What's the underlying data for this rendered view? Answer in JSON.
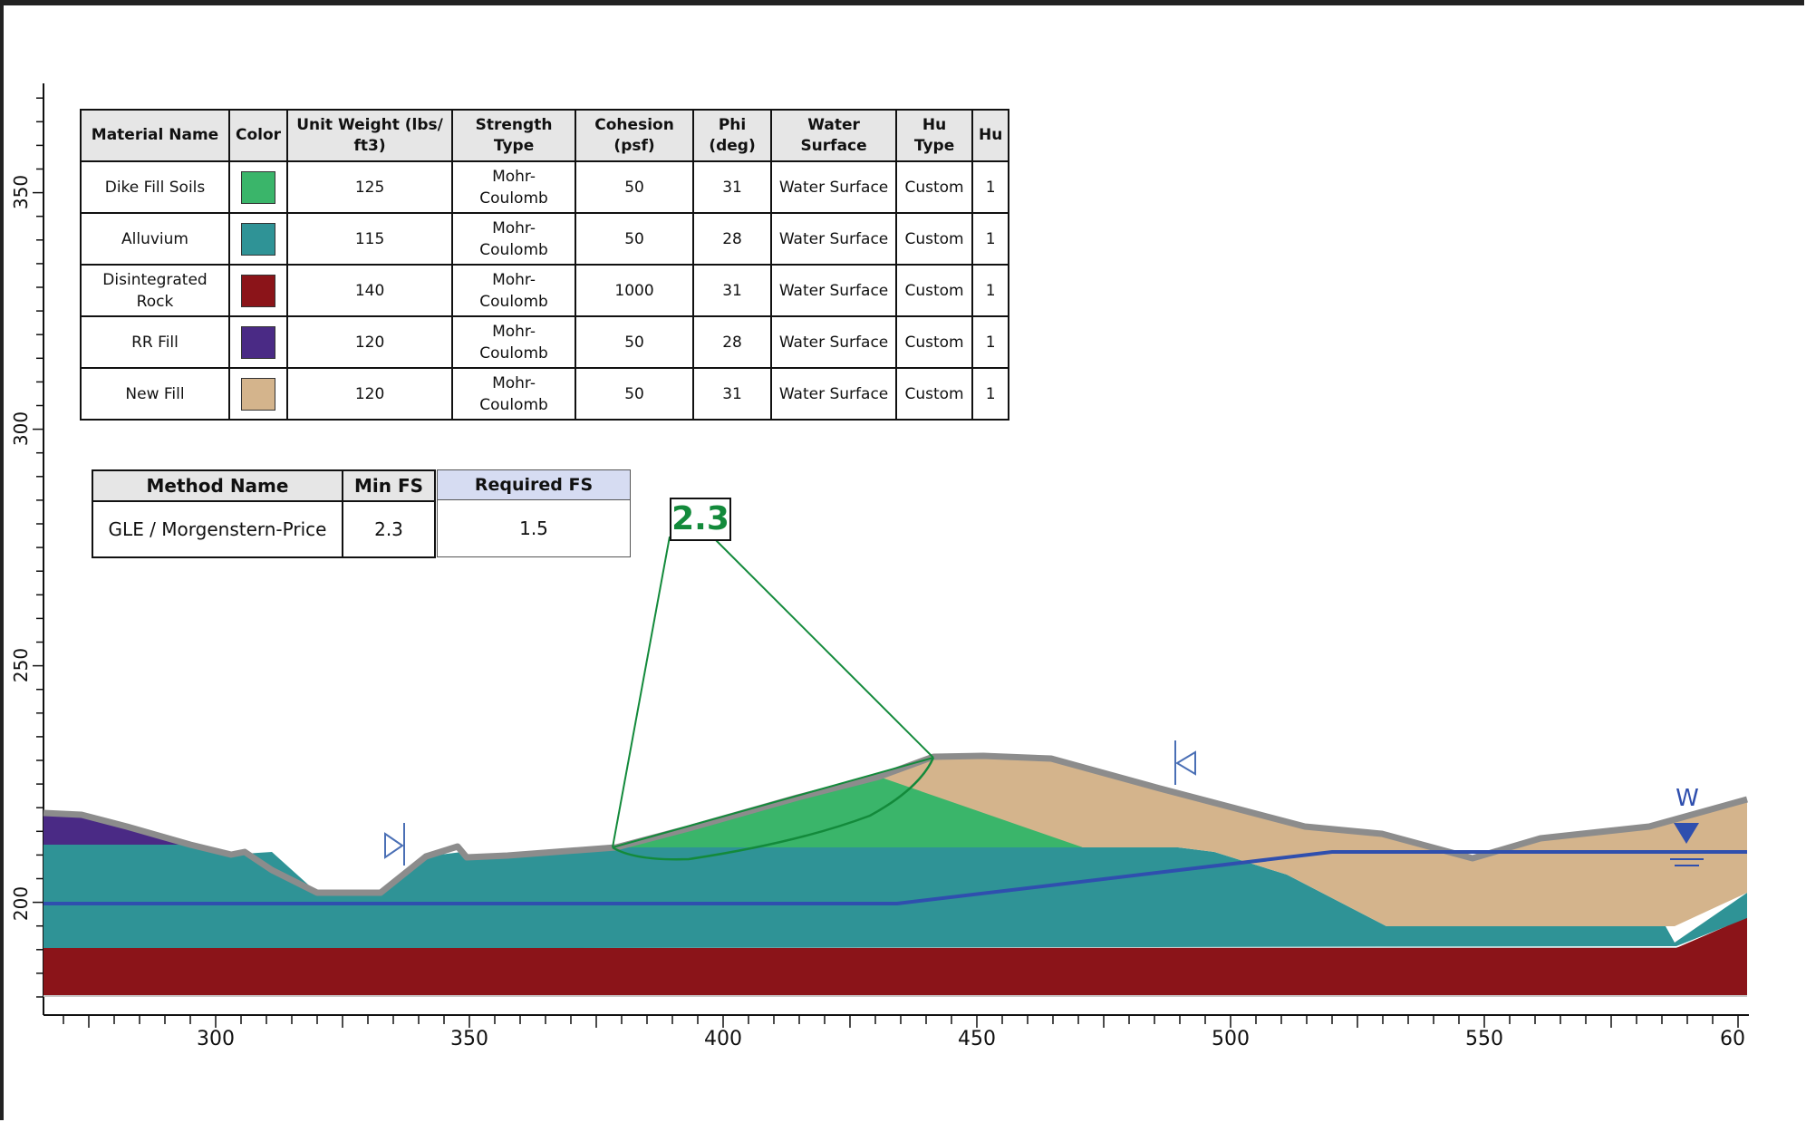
{
  "materials_table": {
    "headers": [
      "Material Name",
      "Color",
      "Unit Weight (lbs/ ft3)",
      "Strength Type",
      "Cohesion (psf)",
      "Phi (deg)",
      "Water Surface",
      "Hu Type",
      "Hu"
    ],
    "rows": [
      {
        "name": "Dike Fill Soils",
        "color": "#3ab56a",
        "unit_weight": "125",
        "strength_type": "Mohr-Coulomb",
        "cohesion": "50",
        "phi": "31",
        "water_surface": "Water Surface",
        "hu_type": "Custom",
        "hu": "1"
      },
      {
        "name": "Alluvium",
        "color": "#2f9396",
        "unit_weight": "115",
        "strength_type": "Mohr-Coulomb",
        "cohesion": "50",
        "phi": "28",
        "water_surface": "Water Surface",
        "hu_type": "Custom",
        "hu": "1"
      },
      {
        "name": "Disintegrated Rock",
        "color": "#8b1419",
        "unit_weight": "140",
        "strength_type": "Mohr-Coulomb",
        "cohesion": "1000",
        "phi": "31",
        "water_surface": "Water Surface",
        "hu_type": "Custom",
        "hu": "1"
      },
      {
        "name": "RR Fill",
        "color": "#4a2a85",
        "unit_weight": "120",
        "strength_type": "Mohr-Coulomb",
        "cohesion": "50",
        "phi": "28",
        "water_surface": "Water Surface",
        "hu_type": "Custom",
        "hu": "1"
      },
      {
        "name": "New Fill",
        "color": "#d4b48c",
        "unit_weight": "120",
        "strength_type": "Mohr-Coulomb",
        "cohesion": "50",
        "phi": "31",
        "water_surface": "Water Surface",
        "hu_type": "Custom",
        "hu": "1"
      }
    ]
  },
  "method_table": {
    "headers": [
      "Method Name",
      "Min FS"
    ],
    "method_name": "GLE / Morgenstern-Price",
    "min_fs": "2.3"
  },
  "required_fs": {
    "header": "Required FS",
    "value": "1.5"
  },
  "fs_label": "2.3",
  "water_label": "W",
  "colors": {
    "dike_fill": "#3ab56a",
    "alluvium": "#2f9396",
    "rock": "#8b1419",
    "rr_fill": "#4a2a85",
    "new_fill": "#d4b48c",
    "water_line": "#2f4fae",
    "slip_surface": "#138a3b",
    "ground_line": "#8c8c8c"
  },
  "axes": {
    "x_ticks": [
      "300",
      "350",
      "400",
      "450",
      "500",
      "550",
      "60"
    ],
    "y_ticks": [
      "350",
      "300",
      "250",
      "200"
    ]
  }
}
